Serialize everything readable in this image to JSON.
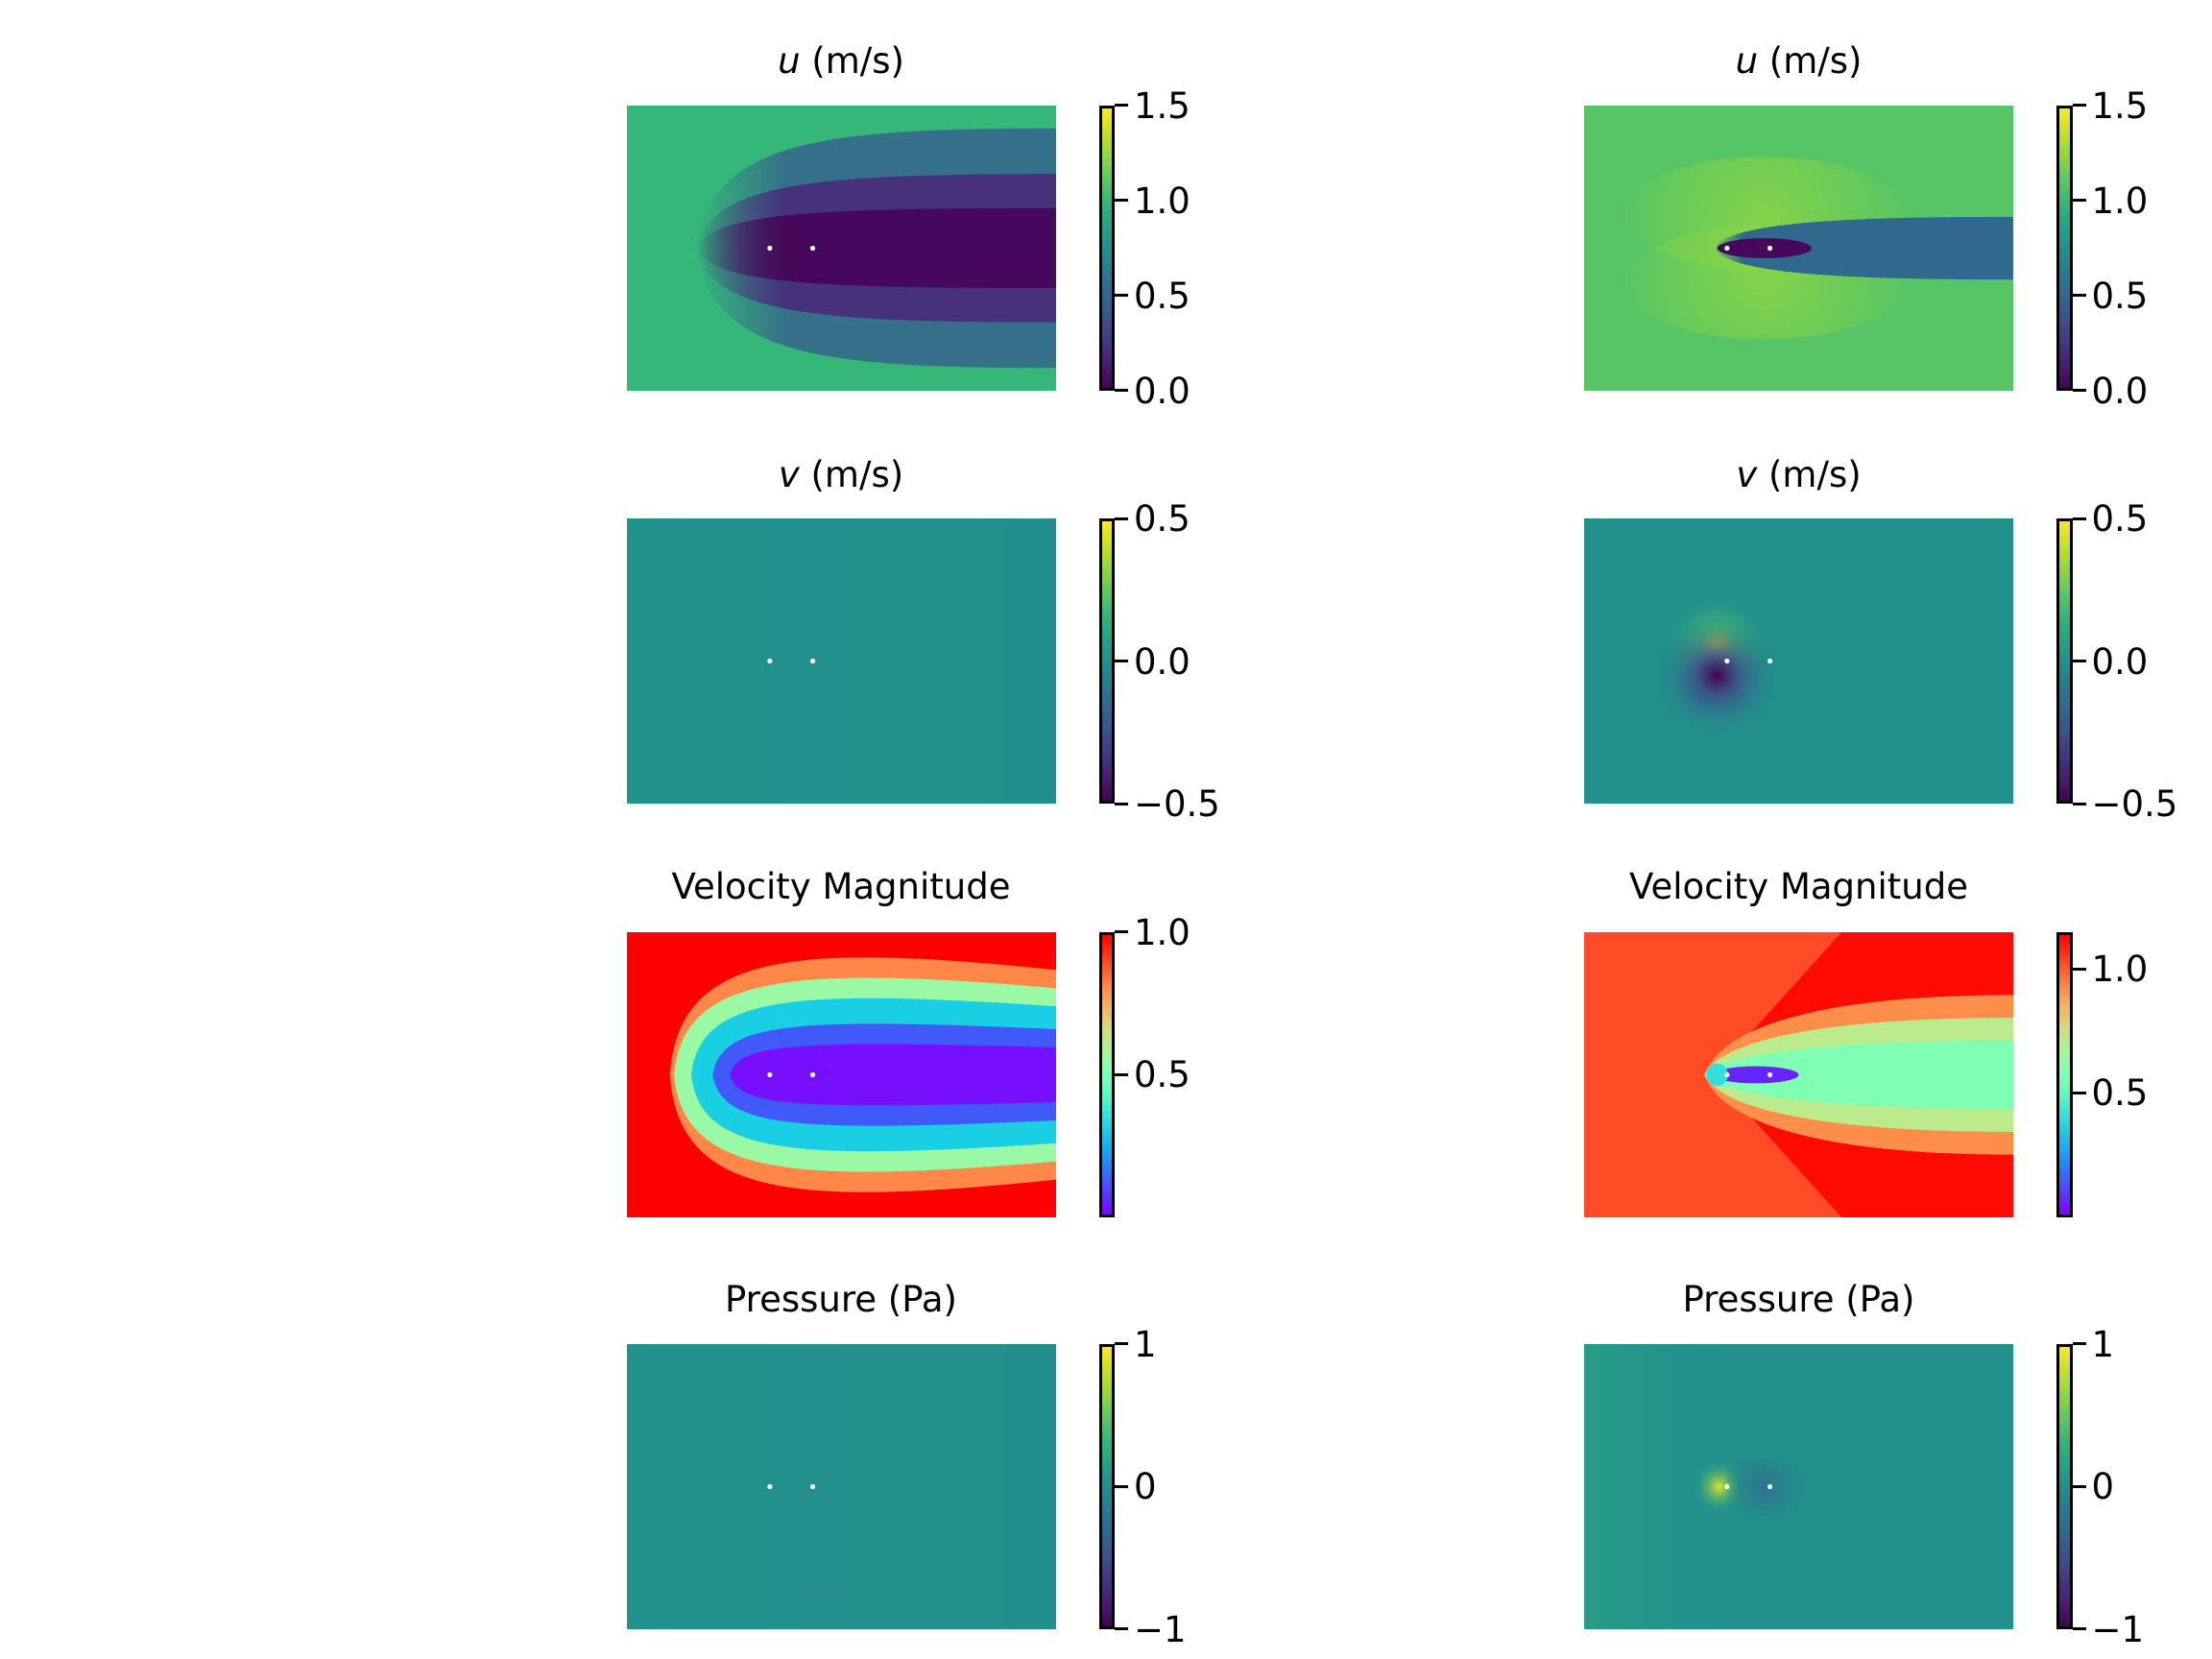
{
  "chart_data": [
    {
      "type": "heatmap",
      "position": "row1-left",
      "title_symbol": "u",
      "title_text": " (m/s)",
      "colormap": "viridis",
      "pattern": "wake-wide",
      "colorbar": {
        "vmin": 0.0,
        "vmax": 1.5,
        "ticks": [
          0.0,
          0.5,
          1.0,
          1.5
        ],
        "tick_labels": [
          "0.0",
          "0.5",
          "1.0",
          "1.5"
        ]
      },
      "background_value": 1.0,
      "wake_value": 0.0
    },
    {
      "type": "heatmap",
      "position": "row1-right",
      "title_symbol": "u",
      "title_text": " (m/s)",
      "colormap": "viridis",
      "pattern": "wake-narrow",
      "colorbar": {
        "vmin": 0.0,
        "vmax": 1.5,
        "ticks": [
          0.0,
          0.5,
          1.0,
          1.5
        ],
        "tick_labels": [
          "0.0",
          "0.5",
          "1.0",
          "1.5"
        ]
      },
      "background_value": 1.1,
      "wake_value": 0.5
    },
    {
      "type": "heatmap",
      "position": "row2-left",
      "title_symbol": "v",
      "title_text": " (m/s)",
      "colormap": "viridis",
      "pattern": "uniform",
      "colorbar": {
        "vmin": -0.5,
        "vmax": 0.5,
        "ticks": [
          -0.5,
          0.0,
          0.5
        ],
        "tick_labels": [
          "−0.5",
          "0.0",
          "0.5"
        ]
      },
      "background_value": 0.0
    },
    {
      "type": "heatmap",
      "position": "row2-right",
      "title_symbol": "v",
      "title_text": " (m/s)",
      "colormap": "viridis",
      "pattern": "dipole",
      "colorbar": {
        "vmin": -0.5,
        "vmax": 0.5,
        "ticks": [
          -0.5,
          0.0,
          0.5
        ],
        "tick_labels": [
          "−0.5",
          "0.0",
          "0.5"
        ]
      },
      "background_value": 0.0
    },
    {
      "type": "heatmap",
      "position": "row3-left",
      "title_symbol": "",
      "title_text": "Velocity Magnitude",
      "colormap": "rainbow",
      "pattern": "magnitude-wide",
      "colorbar": {
        "vmin": 0.0,
        "vmax": 1.0,
        "ticks": [
          0.5,
          1.0
        ],
        "tick_labels": [
          "0.5",
          "1.0"
        ]
      },
      "background_value": 1.0,
      "wake_value": 0.0
    },
    {
      "type": "heatmap",
      "position": "row3-right",
      "title_symbol": "",
      "title_text": "Velocity Magnitude",
      "colormap": "rainbow",
      "pattern": "magnitude-narrow",
      "colorbar": {
        "vmin": 0.0,
        "vmax": 1.15,
        "ticks": [
          0.5,
          1.0
        ],
        "tick_labels": [
          "0.5",
          "1.0"
        ]
      },
      "background_value": 1.0,
      "wake_value": 0.6
    },
    {
      "type": "heatmap",
      "position": "row4-left",
      "title_symbol": "",
      "title_text": "Pressure (Pa)",
      "colormap": "viridis",
      "pattern": "uniform",
      "colorbar": {
        "vmin": -1,
        "vmax": 1,
        "ticks": [
          -1,
          0,
          1
        ],
        "tick_labels": [
          "−1",
          "0",
          "1"
        ]
      },
      "background_value": 0.0
    },
    {
      "type": "heatmap",
      "position": "row4-right",
      "title_symbol": "",
      "title_text": "Pressure (Pa)",
      "colormap": "viridis",
      "pattern": "pressure",
      "colorbar": {
        "vmin": -1,
        "vmax": 1,
        "ticks": [
          -1,
          0,
          1
        ],
        "tick_labels": [
          "−1",
          "0",
          "1"
        ]
      },
      "background_value": 0.0
    }
  ]
}
